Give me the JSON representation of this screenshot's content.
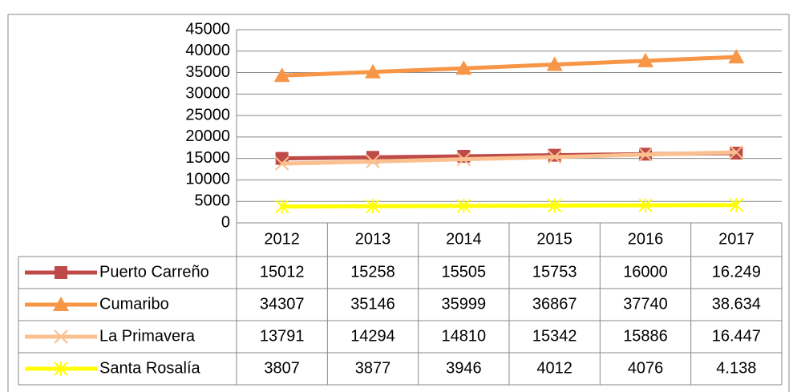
{
  "chart_data": {
    "type": "line",
    "categories": [
      "2012",
      "2013",
      "2014",
      "2015",
      "2016",
      "2017"
    ],
    "series": [
      {
        "name": "Puerto Carreño",
        "color": "#be4b48",
        "marker": "square",
        "values": [
          15012,
          15258,
          15505,
          15753,
          16000,
          16249
        ],
        "value_labels": [
          "15012",
          "15258",
          "15505",
          "15753",
          "16000",
          "16.249"
        ]
      },
      {
        "name": "Cumaribo",
        "color": "#f79646",
        "marker": "triangle",
        "values": [
          34307,
          35146,
          35999,
          36867,
          37740,
          38634
        ],
        "value_labels": [
          "34307",
          "35146",
          "35999",
          "36867",
          "37740",
          "38.634"
        ]
      },
      {
        "name": "La Primavera",
        "color": "#fac08f",
        "marker": "x",
        "values": [
          13791,
          14294,
          14810,
          15342,
          15886,
          16447
        ],
        "value_labels": [
          "13791",
          "14294",
          "14810",
          "15342",
          "15886",
          "16.447"
        ]
      },
      {
        "name": "Santa Rosalía",
        "color": "#ffff00",
        "marker": "star",
        "values": [
          3807,
          3877,
          3946,
          4012,
          4076,
          4138
        ],
        "value_labels": [
          "3807",
          "3877",
          "3946",
          "4012",
          "4076",
          "4.138"
        ]
      }
    ],
    "ylim": [
      0,
      45000
    ],
    "yticks": [
      0,
      5000,
      10000,
      15000,
      20000,
      25000,
      30000,
      35000,
      40000,
      45000
    ],
    "grid": true,
    "data_table": true
  }
}
